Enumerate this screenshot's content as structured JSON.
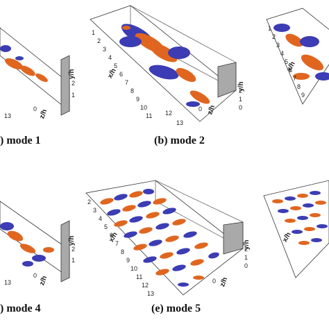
{
  "figure": {
    "captions": {
      "a": ") mode 1",
      "b": "(b) mode 2",
      "d": ") mode 4",
      "e": "(e) mode 5"
    },
    "axis_labels": {
      "x": "x/h",
      "y": "y/h",
      "z": "z/h"
    },
    "x_ticks": [
      "1",
      "2",
      "3",
      "4",
      "5",
      "6",
      "7",
      "8",
      "9",
      "10",
      "11",
      "12",
      "13"
    ],
    "y_ticks": [
      "0",
      "1",
      "2"
    ],
    "z_ticks": [
      "0"
    ],
    "colors": {
      "positive": "#e0661f",
      "negative": "#3c3cb4",
      "wall": "#a9a9a9",
      "frame": "#333333"
    }
  }
}
